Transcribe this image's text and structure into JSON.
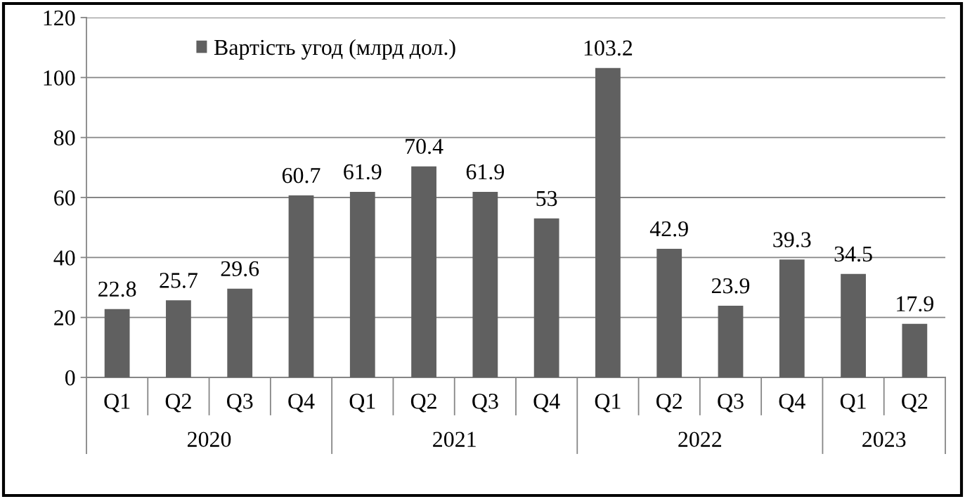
{
  "chart_data": {
    "type": "bar",
    "categories": [
      "Q1",
      "Q2",
      "Q3",
      "Q4",
      "Q1",
      "Q2",
      "Q3",
      "Q4",
      "Q1",
      "Q2",
      "Q3",
      "Q4",
      "Q1",
      "Q2"
    ],
    "series": [
      {
        "name": "Вартість угод (млрд дол.)",
        "color": "#606060",
        "values": [
          22.8,
          25.7,
          29.6,
          60.7,
          61.9,
          70.4,
          61.9,
          53,
          103.2,
          42.9,
          23.9,
          39.3,
          34.5,
          17.9
        ]
      }
    ],
    "ylim": [
      0,
      120
    ],
    "yticks": [
      0,
      20,
      40,
      60,
      80,
      100,
      120
    ],
    "grid": "y",
    "legend": "top left",
    "data_labels": true,
    "annotations": [
      "2020",
      "2021",
      "2022",
      "2023"
    ]
  }
}
